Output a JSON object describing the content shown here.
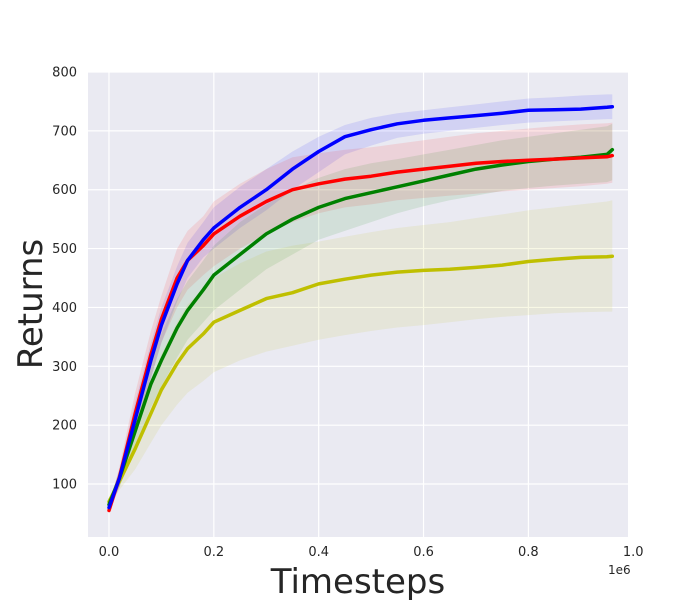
{
  "chart_data": {
    "type": "line",
    "title": "",
    "xlabel": "Timesteps",
    "ylabel": "Returns",
    "x_offset_label": "1e6",
    "xlim": [
      -0.04,
      0.99
    ],
    "ylim": [
      10,
      800
    ],
    "x_ticks": [
      0.0,
      0.2,
      0.4,
      0.6,
      0.8,
      1.0
    ],
    "x_tick_labels": [
      "0.0",
      "0.2",
      "0.4",
      "0.6",
      "0.8",
      "1.0"
    ],
    "y_ticks": [
      100,
      200,
      300,
      400,
      500,
      600,
      700,
      800
    ],
    "y_tick_labels": [
      "100",
      "200",
      "300",
      "400",
      "500",
      "600",
      "700",
      "800"
    ],
    "grid": true,
    "background": "#eaeaf2",
    "x": [
      0.0,
      0.02,
      0.05,
      0.08,
      0.1,
      0.13,
      0.15,
      0.18,
      0.2,
      0.25,
      0.3,
      0.35,
      0.4,
      0.45,
      0.5,
      0.55,
      0.6,
      0.65,
      0.7,
      0.75,
      0.8,
      0.85,
      0.9,
      0.95,
      0.96
    ],
    "series": [
      {
        "color": "#0000ff",
        "values": [
          60,
          110,
          210,
          310,
          370,
          440,
          480,
          515,
          535,
          570,
          600,
          635,
          665,
          690,
          702,
          712,
          718,
          722,
          726,
          730,
          735,
          736,
          737,
          740,
          741
        ],
        "lower": [
          55,
          95,
          180,
          280,
          340,
          410,
          450,
          485,
          500,
          535,
          565,
          600,
          630,
          660,
          675,
          688,
          695,
          700,
          705,
          710,
          714,
          716,
          718,
          720,
          720
        ],
        "upper": [
          65,
          125,
          240,
          340,
          400,
          470,
          510,
          545,
          570,
          605,
          635,
          665,
          690,
          710,
          722,
          730,
          735,
          740,
          745,
          750,
          755,
          757,
          760,
          762,
          762
        ]
      },
      {
        "color": "#ff0000",
        "values": [
          55,
          112,
          220,
          320,
          380,
          450,
          480,
          505,
          525,
          555,
          580,
          600,
          610,
          618,
          623,
          630,
          635,
          640,
          645,
          648,
          650,
          652,
          654,
          656,
          658
        ],
        "lower": [
          50,
          95,
          185,
          280,
          340,
          400,
          430,
          455,
          470,
          500,
          525,
          545,
          560,
          570,
          575,
          582,
          586,
          590,
          593,
          597,
          600,
          603,
          606,
          610,
          612
        ],
        "upper": [
          60,
          130,
          255,
          360,
          420,
          500,
          530,
          555,
          580,
          610,
          635,
          655,
          662,
          668,
          672,
          678,
          684,
          690,
          696,
          700,
          704,
          708,
          711,
          713,
          714
        ]
      },
      {
        "color": "#008000",
        "values": [
          65,
          110,
          190,
          270,
          310,
          365,
          395,
          430,
          455,
          490,
          525,
          550,
          570,
          585,
          595,
          605,
          615,
          625,
          635,
          642,
          648,
          652,
          655,
          660,
          668
        ],
        "lower": [
          60,
          95,
          160,
          230,
          265,
          315,
          345,
          375,
          395,
          430,
          465,
          490,
          515,
          530,
          545,
          560,
          572,
          582,
          590,
          598,
          603,
          607,
          610,
          613,
          616
        ],
        "upper": [
          70,
          125,
          220,
          310,
          355,
          415,
          445,
          480,
          505,
          545,
          575,
          600,
          620,
          635,
          645,
          652,
          660,
          668,
          676,
          684,
          690,
          696,
          702,
          708,
          712
        ]
      },
      {
        "color": "#bfbf00",
        "values": [
          70,
          105,
          160,
          220,
          260,
          305,
          330,
          355,
          375,
          395,
          415,
          425,
          440,
          448,
          455,
          460,
          463,
          465,
          468,
          472,
          478,
          482,
          485,
          486,
          487
        ],
        "lower": [
          65,
          90,
          125,
          170,
          200,
          235,
          255,
          275,
          290,
          310,
          325,
          335,
          345,
          353,
          360,
          366,
          370,
          375,
          380,
          384,
          387,
          390,
          392,
          393,
          393
        ],
        "upper": [
          75,
          120,
          200,
          275,
          320,
          375,
          405,
          430,
          450,
          475,
          495,
          505,
          512,
          520,
          528,
          535,
          540,
          545,
          552,
          558,
          565,
          570,
          575,
          580,
          582
        ]
      }
    ]
  }
}
